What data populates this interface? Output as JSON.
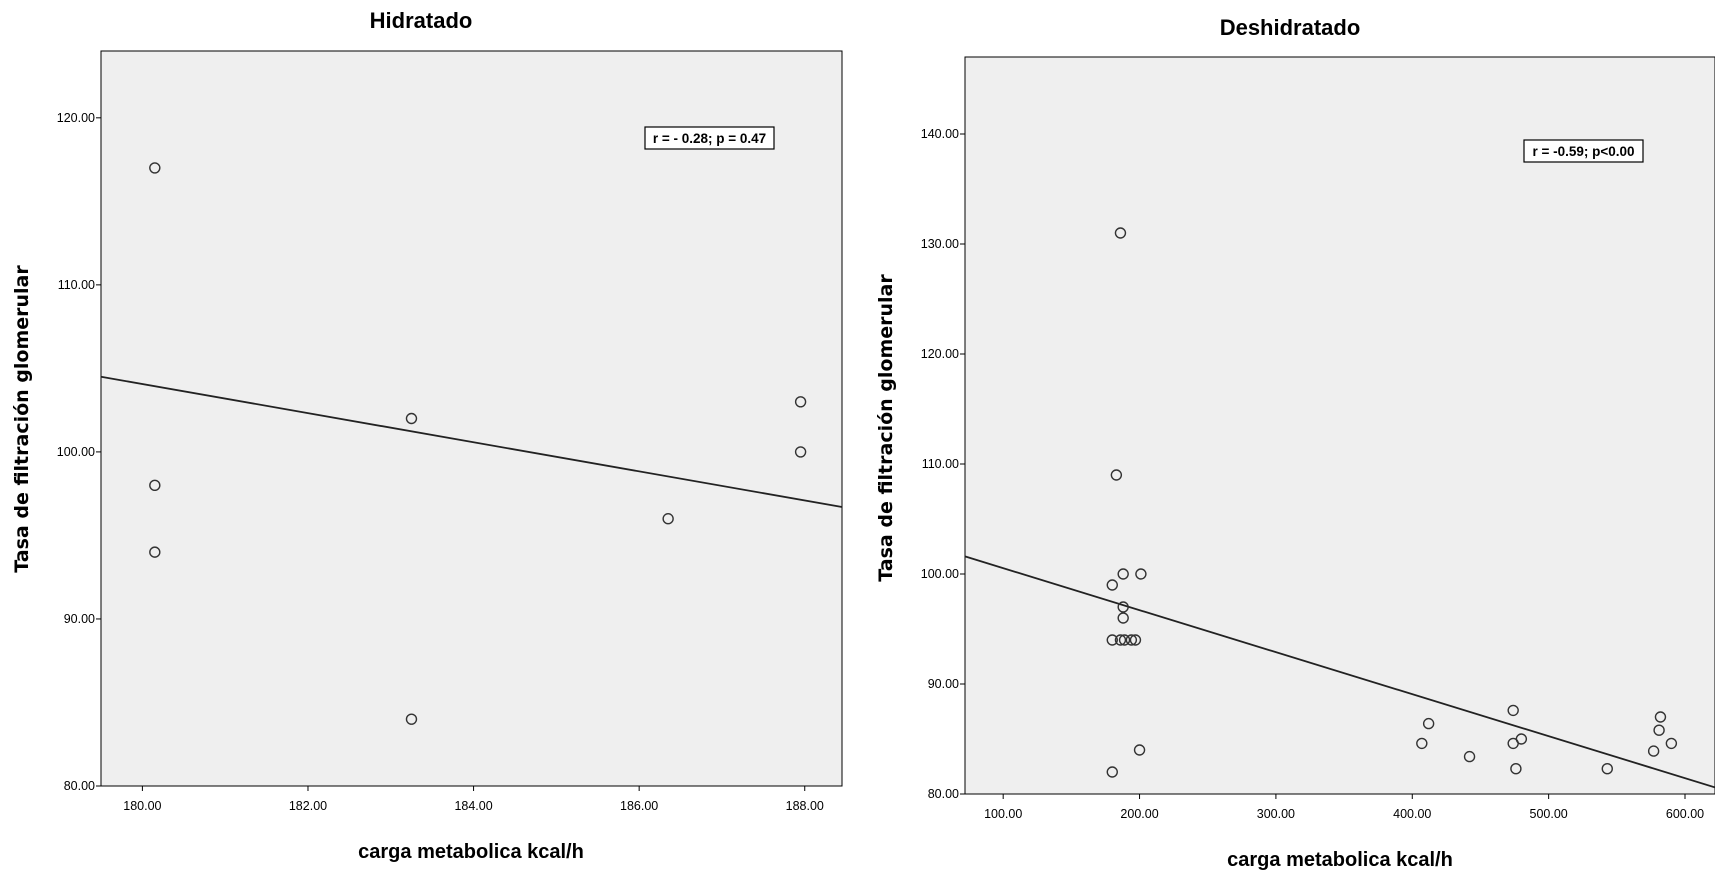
{
  "chart_data": [
    {
      "type": "scatter",
      "title": "Hidratado",
      "xlabel": "carga metabolica kcal/h",
      "ylabel": "Tasa de filtración glomerular",
      "annotation": "r = - 0.28; p = 0.47",
      "xlim": [
        179.5,
        188.45
      ],
      "ylim": [
        80,
        124
      ],
      "xticks": [
        180,
        182,
        184,
        186,
        188
      ],
      "xtick_labels": [
        "180.00",
        "182.00",
        "184.00",
        "186.00",
        "188.00"
      ],
      "yticks": [
        80,
        90,
        100,
        110,
        120
      ],
      "ytick_labels": [
        "80.00",
        "90.00",
        "100.00",
        "110.00",
        "120.00"
      ],
      "points": [
        {
          "x": 180.15,
          "y": 117
        },
        {
          "x": 180.15,
          "y": 98
        },
        {
          "x": 180.15,
          "y": 94
        },
        {
          "x": 183.25,
          "y": 102
        },
        {
          "x": 183.25,
          "y": 84
        },
        {
          "x": 186.35,
          "y": 96
        },
        {
          "x": 187.95,
          "y": 103
        },
        {
          "x": 187.95,
          "y": 100
        }
      ],
      "fit_line": {
        "x": [
          179.5,
          188.45
        ],
        "y": [
          104.5,
          96.7
        ]
      },
      "grid": false,
      "background": "#efefef",
      "marker_color": "#333333"
    },
    {
      "type": "scatter",
      "title": "Deshidratado",
      "xlabel": "carga metabolica kcal/h",
      "ylabel": "Tasa de filtración glomerular",
      "annotation": "r = -0.59; p<0.00",
      "xlim": [
        72,
        622
      ],
      "ylim": [
        80,
        147
      ],
      "xticks": [
        100,
        200,
        300,
        400,
        500,
        600
      ],
      "xtick_labels": [
        "100.00",
        "200.00",
        "300.00",
        "400.00",
        "500.00",
        "600.00"
      ],
      "yticks": [
        80,
        90,
        100,
        110,
        120,
        130,
        140
      ],
      "ytick_labels": [
        "80.00",
        "90.00",
        "100.00",
        "110.00",
        "120.00",
        "130.00",
        "140.00"
      ],
      "points": [
        {
          "x": 186,
          "y": 131
        },
        {
          "x": 183,
          "y": 109
        },
        {
          "x": 188,
          "y": 100
        },
        {
          "x": 201,
          "y": 100
        },
        {
          "x": 180,
          "y": 99
        },
        {
          "x": 188,
          "y": 97
        },
        {
          "x": 188,
          "y": 96
        },
        {
          "x": 180,
          "y": 94
        },
        {
          "x": 186,
          "y": 94
        },
        {
          "x": 189,
          "y": 94
        },
        {
          "x": 194,
          "y": 94
        },
        {
          "x": 197,
          "y": 94
        },
        {
          "x": 200,
          "y": 84
        },
        {
          "x": 180,
          "y": 82
        },
        {
          "x": 412,
          "y": 86.4
        },
        {
          "x": 407,
          "y": 84.6
        },
        {
          "x": 442,
          "y": 83.4
        },
        {
          "x": 474,
          "y": 87.6
        },
        {
          "x": 474,
          "y": 84.6
        },
        {
          "x": 480,
          "y": 85
        },
        {
          "x": 476,
          "y": 82.3
        },
        {
          "x": 543,
          "y": 82.3
        },
        {
          "x": 582,
          "y": 87
        },
        {
          "x": 581,
          "y": 85.8
        },
        {
          "x": 590,
          "y": 84.6
        },
        {
          "x": 577,
          "y": 83.9
        }
      ],
      "fit_line": {
        "x": [
          72,
          622
        ],
        "y": [
          101.6,
          80.6
        ]
      },
      "grid": false,
      "background": "#efefef",
      "marker_color": "#333333"
    }
  ]
}
